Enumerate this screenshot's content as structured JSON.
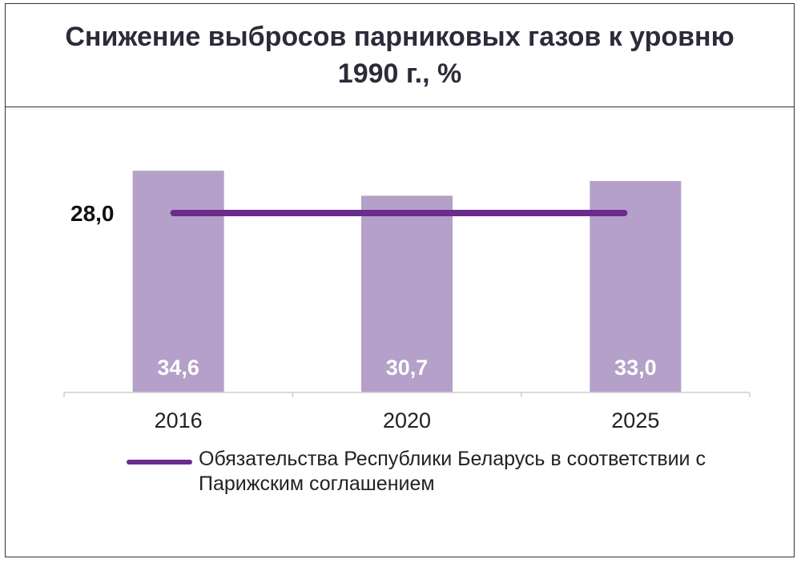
{
  "chart_data": {
    "type": "bar",
    "title": "Снижение выбросов парниковых газов к уровню 1990 г., %",
    "categories": [
      "2016",
      "2020",
      "2025"
    ],
    "series": [
      {
        "values": [
          34.6,
          30.7,
          33.0
        ],
        "labels": [
          "34,6",
          "30,7",
          "33,0"
        ],
        "color": "#b4a0c8"
      }
    ],
    "reference_line": {
      "name": "Обязательства Республики Беларусь в соответствии с Парижским соглашением",
      "value": 28.0,
      "label": "28,0",
      "color": "#6b2c8e"
    },
    "ylim": [
      0,
      40
    ],
    "grid": false,
    "legend": "bottom",
    "label_color": "#ffffff"
  }
}
